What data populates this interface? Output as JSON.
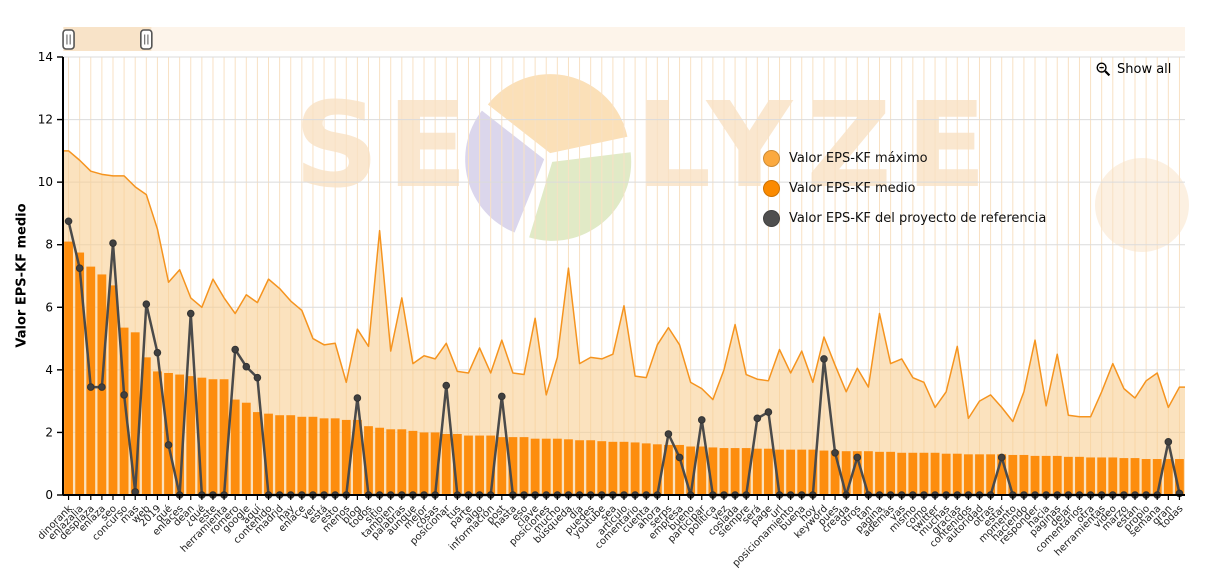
{
  "header": {
    "show_all_label": "Show all"
  },
  "watermark": {
    "left_text": "SE",
    "right_text": "LYZE"
  },
  "legend": [
    {
      "label": "Valor EPS-KF máximo",
      "color": "#FBA93F"
    },
    {
      "label": "Valor EPS-KF medio",
      "color": "#FB8A00"
    },
    {
      "label": "Valor EPS-KF del proyecto de referencia",
      "color": "#4F4F4F"
    }
  ],
  "slider": {
    "start_category_index": 0,
    "end_category_index": 7
  },
  "chart_data": {
    "type": "combo",
    "title": "",
    "xlabel": "",
    "ylabel": "Valor EPS-KF medio",
    "ylim": [
      0,
      14
    ],
    "y_ticks": [
      0,
      2,
      4,
      6,
      8,
      10,
      12,
      14
    ],
    "grid": true,
    "legend_position": "right-middle",
    "categories": [
      "dinorank",
      "enlazalia",
      "desplaza",
      "enlaza",
      "seo",
      "concurso",
      "mas",
      "web",
      "2019",
      "qué",
      "enlaces",
      "dean",
      "¿qué",
      "este",
      "herramienta",
      "romero",
      "google",
      "aquí",
      "contenido",
      "madrid",
      "hay",
      "enlace",
      "ver",
      "está",
      "esto",
      "menos",
      "blog",
      "todos",
      "sitio",
      "tambien",
      "palabras",
      "aunque",
      "mejor",
      "cosas",
      "posicionar",
      "tus",
      "parte",
      "algo",
      "información",
      "post",
      "hasta",
      "eso",
      "clave",
      "posiciones",
      "mucho",
      "búsqueda",
      "día",
      "puedes",
      "youtube",
      "sea",
      "artículo",
      "comentario",
      "cuenta",
      "ahora",
      "serps",
      "empresa",
      "bueno",
      "participar",
      "política",
      "vez",
      "coslada",
      "siempre",
      "será",
      "page",
      "url",
      "posicionamiento",
      "buena",
      "hoy",
      "keyword",
      "pues",
      "creada",
      "otros",
      "tan",
      "pagina",
      "además",
      "vas",
      "mismo",
      "como",
      "twitter",
      "muchas",
      "gracias",
      "contenidos",
      "autoridad",
      "otras",
      "estar",
      "momento",
      "haciendo",
      "responder",
      "hacia",
      "paginas",
      "dejar",
      "comentarios",
      "otra",
      "herramientas",
      "video",
      "marzo",
      "están",
      "propio",
      "semana",
      "gran",
      "todas"
    ],
    "series": [
      {
        "name": "Valor EPS-KF máximo",
        "type": "area",
        "stroke": "#F5941F",
        "fill": "#F9CE93",
        "values": [
          11.0,
          10.7,
          10.35,
          10.25,
          10.2,
          10.2,
          9.85,
          9.6,
          8.5,
          6.8,
          7.2,
          6.3,
          6.0,
          6.9,
          6.3,
          5.8,
          6.4,
          6.15,
          6.9,
          6.6,
          6.2,
          5.9,
          5.0,
          4.8,
          4.85,
          3.6,
          5.3,
          4.75,
          8.45,
          4.6,
          6.3,
          4.2,
          4.45,
          4.35,
          4.85,
          3.95,
          3.9,
          4.7,
          3.9,
          4.95,
          3.9,
          3.85,
          5.65,
          3.2,
          4.4,
          7.25,
          4.2,
          4.4,
          4.35,
          4.5,
          6.05,
          3.8,
          3.75,
          4.8,
          5.35,
          4.8,
          3.6,
          3.4,
          3.05,
          4.0,
          5.45,
          3.85,
          3.7,
          3.65,
          4.65,
          3.9,
          4.6,
          3.6,
          5.05,
          4.15,
          3.3,
          4.05,
          3.45,
          5.8,
          4.2,
          4.35,
          3.75,
          3.6,
          2.8,
          3.3,
          4.75,
          2.45,
          3.0,
          3.2,
          2.8,
          2.35,
          3.3,
          4.95,
          2.85,
          4.5,
          2.55,
          2.5,
          2.5,
          3.3,
          4.2,
          3.4,
          3.1,
          3.65,
          3.9,
          2.8,
          3.45
        ]
      },
      {
        "name": "Valor EPS-KF medio",
        "type": "bar",
        "fill": "#FD8D0E",
        "values": [
          8.1,
          7.75,
          7.3,
          7.05,
          6.7,
          5.35,
          5.2,
          4.4,
          3.95,
          3.9,
          3.85,
          3.8,
          3.75,
          3.7,
          3.7,
          3.05,
          2.95,
          2.65,
          2.6,
          2.55,
          2.55,
          2.5,
          2.5,
          2.45,
          2.45,
          2.4,
          2.4,
          2.2,
          2.15,
          2.1,
          2.1,
          2.05,
          2.0,
          2.0,
          1.95,
          1.95,
          1.9,
          1.9,
          1.9,
          1.85,
          1.85,
          1.85,
          1.8,
          1.8,
          1.8,
          1.78,
          1.75,
          1.75,
          1.72,
          1.7,
          1.7,
          1.68,
          1.65,
          1.62,
          1.6,
          1.6,
          1.55,
          1.55,
          1.52,
          1.5,
          1.5,
          1.5,
          1.48,
          1.48,
          1.45,
          1.45,
          1.45,
          1.45,
          1.42,
          1.42,
          1.4,
          1.4,
          1.4,
          1.38,
          1.38,
          1.35,
          1.35,
          1.35,
          1.35,
          1.32,
          1.32,
          1.3,
          1.3,
          1.3,
          1.3,
          1.28,
          1.28,
          1.25,
          1.25,
          1.25,
          1.22,
          1.22,
          1.2,
          1.2,
          1.2,
          1.18,
          1.18,
          1.15,
          1.15,
          1.15,
          1.15
        ]
      },
      {
        "name": "Valor EPS-KF del proyecto de referencia",
        "type": "line",
        "stroke": "#4A4A4A",
        "values": [
          8.75,
          7.25,
          3.45,
          3.45,
          8.05,
          3.2,
          0.1,
          6.1,
          4.55,
          1.6,
          0,
          5.8,
          0,
          0,
          0,
          4.65,
          4.1,
          3.75,
          0,
          0,
          0,
          0,
          0,
          0,
          0,
          0,
          3.1,
          0,
          0,
          0,
          0,
          0,
          0,
          0,
          3.5,
          0,
          0,
          0,
          0,
          3.15,
          0,
          0,
          0,
          0,
          0,
          0,
          0,
          0,
          0,
          0,
          0,
          0,
          0,
          0,
          1.95,
          1.2,
          0,
          2.4,
          0,
          0,
          0,
          0,
          2.45,
          2.65,
          0,
          0,
          0,
          0,
          4.35,
          1.35,
          0,
          1.2,
          0,
          0,
          0,
          0,
          0,
          0,
          0,
          0,
          0,
          0,
          0,
          0,
          1.2,
          0,
          0,
          0,
          0,
          0,
          0,
          0,
          0,
          0,
          0,
          0,
          0,
          0,
          0,
          1.7,
          0.05
        ]
      }
    ]
  }
}
